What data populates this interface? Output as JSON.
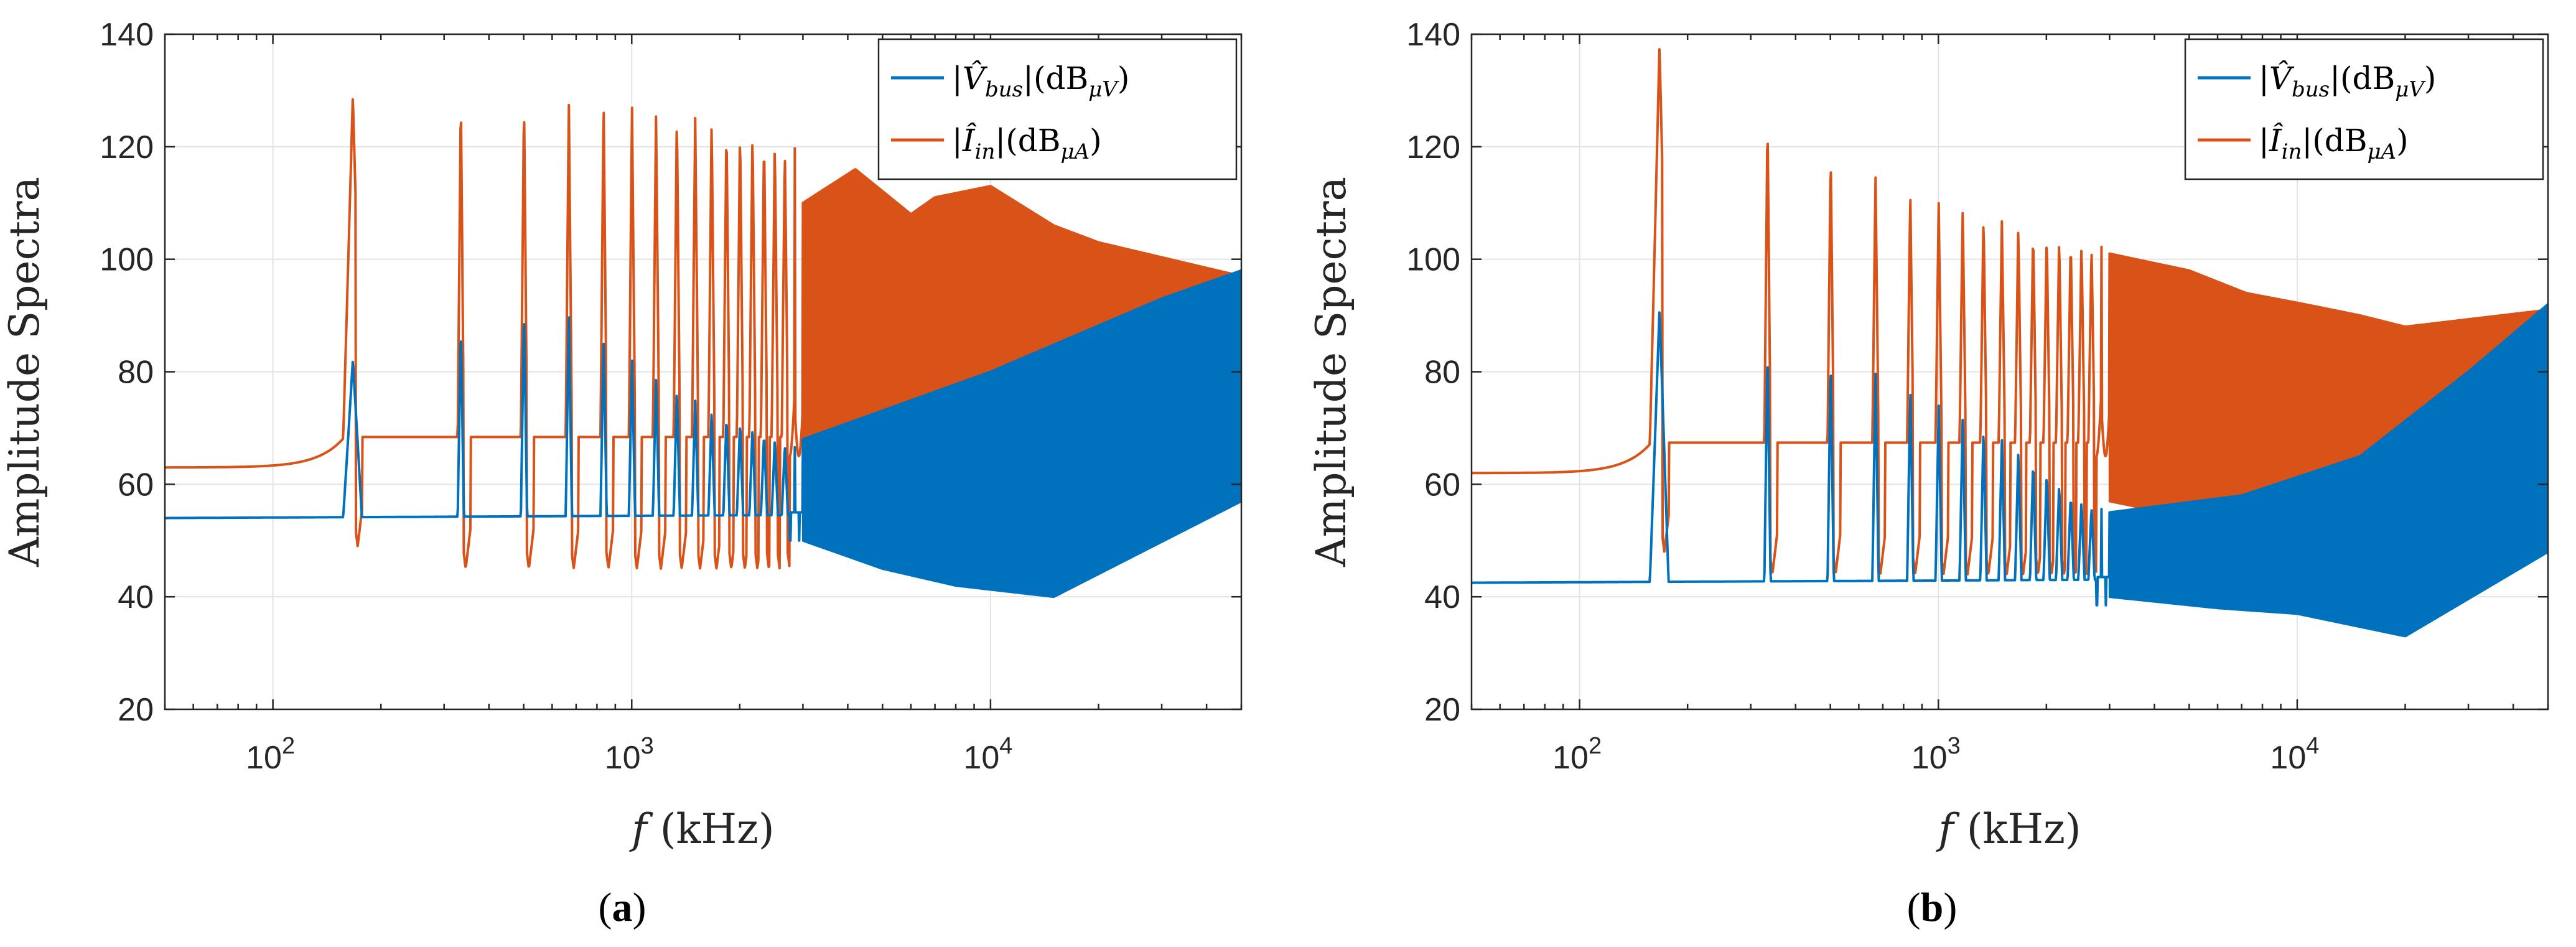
{
  "colors": {
    "vbus": "#0072BD",
    "iin": "#D95319",
    "grid": "#e3e3e3",
    "axis": "#262626"
  },
  "chart_data": [
    {
      "type": "line",
      "panel_label": "(a)",
      "xlabel": "f (kHz)",
      "xlabel_var": "f",
      "xlabel_unit": "(kHz)",
      "ylabel": "Amplitude Spectra",
      "xscale": "log",
      "xlim": [
        50,
        50000
      ],
      "ylim": [
        20,
        140
      ],
      "yticks": [
        20,
        40,
        60,
        80,
        100,
        120,
        140
      ],
      "xticks": [
        100,
        1000,
        10000
      ],
      "xtick_labels": [
        [
          "10",
          "2"
        ],
        [
          "10",
          "3"
        ],
        [
          "10",
          "4"
        ]
      ],
      "grid": true,
      "legend_position": "top-right",
      "series": [
        {
          "name": "|V̂bus|(dBμV)",
          "legend": {
            "pre": "|",
            "var": "V̂",
            "sub": "bus",
            "mid": "|(dB",
            "unitsub": "μV",
            "post": ")"
          },
          "color_key": "vbus"
        },
        {
          "name": "|Îin|(dBμA)",
          "legend": {
            "pre": "|",
            "var": "Î",
            "sub": "in",
            "mid": "|(dB",
            "unitsub": "μA",
            "post": ")"
          },
          "color_key": "iin"
        }
      ],
      "fundamental_khz": 167,
      "harmonic_peaks": {
        "vbus": [
          82,
          88,
          91,
          90,
          86,
          82,
          79,
          77,
          75,
          73,
          72,
          71,
          70,
          69,
          68,
          67
        ],
        "iin": [
          129,
          129,
          128.5,
          128,
          128,
          127,
          126.5,
          126,
          125.5,
          125,
          124,
          123.5,
          123,
          122,
          121,
          120
        ]
      },
      "vbus_baseline": 54,
      "iin_baseline_start": 63,
      "iin_envelope_hf": [
        [
          3000,
          110
        ],
        [
          4200,
          116
        ],
        [
          6000,
          108
        ],
        [
          7000,
          111
        ],
        [
          10000,
          113
        ],
        [
          15000,
          106
        ],
        [
          20000,
          103
        ],
        [
          50000,
          97
        ]
      ],
      "iin_trough_hf": [
        [
          3000,
          62
        ],
        [
          5000,
          55
        ],
        [
          10000,
          52
        ],
        [
          20000,
          48
        ],
        [
          50000,
          58
        ]
      ],
      "vbus_envelope_hf": [
        [
          3000,
          68
        ],
        [
          10000,
          80
        ],
        [
          30000,
          93
        ],
        [
          50000,
          98
        ]
      ],
      "vbus_trough_hf": [
        [
          3000,
          50
        ],
        [
          5000,
          45
        ],
        [
          8000,
          42
        ],
        [
          15000,
          40
        ],
        [
          50000,
          57
        ]
      ]
    },
    {
      "type": "line",
      "panel_label": "(b)",
      "xlabel": "f (kHz)",
      "xlabel_var": "f",
      "xlabel_unit": "(kHz)",
      "ylabel": "Amplitude Spectra",
      "xscale": "log",
      "xlim": [
        50,
        50000
      ],
      "ylim": [
        20,
        140
      ],
      "yticks": [
        20,
        40,
        60,
        80,
        100,
        120,
        140
      ],
      "xticks": [
        100,
        1000,
        10000
      ],
      "xtick_labels": [
        [
          "10",
          "2"
        ],
        [
          "10",
          "3"
        ],
        [
          "10",
          "4"
        ]
      ],
      "grid": true,
      "legend_position": "top-right",
      "series": [
        {
          "name": "|V̂bus|(dBμV)",
          "legend": {
            "pre": "|",
            "var": "V̂",
            "sub": "bus",
            "mid": "|(dB",
            "unitsub": "μV",
            "post": ")"
          },
          "color_key": "vbus"
        },
        {
          "name": "|Îin|(dBμA)",
          "legend": {
            "pre": "|",
            "var": "Î",
            "sub": "in",
            "mid": "|(dB",
            "unitsub": "μA",
            "post": ")"
          },
          "color_key": "iin"
        }
      ],
      "fundamental_khz": 167,
      "harmonic_peaks": {
        "vbus": [
          91,
          84,
          82,
          80,
          77,
          74,
          72,
          70,
          68,
          66,
          64,
          62,
          60,
          58,
          57,
          56
        ],
        "iin": [
          138,
          125,
          119,
          115,
          112,
          110,
          109,
          108,
          107,
          106,
          105,
          104.5,
          104,
          103.5,
          103,
          102.5
        ]
      },
      "vbus_baseline": 42.5,
      "iin_baseline_start": 62,
      "iin_envelope_hf": [
        [
          3000,
          101
        ],
        [
          5000,
          98
        ],
        [
          7200,
          94
        ],
        [
          10500,
          92
        ],
        [
          15000,
          90
        ],
        [
          20000,
          88
        ],
        [
          50000,
          91
        ]
      ],
      "iin_trough_hf": [
        [
          3000,
          57
        ],
        [
          6000,
          53
        ],
        [
          10000,
          48
        ],
        [
          15000,
          35
        ],
        [
          20000,
          50
        ],
        [
          50000,
          60
        ]
      ],
      "vbus_envelope_hf": [
        [
          3000,
          55
        ],
        [
          7000,
          58
        ],
        [
          15000,
          65
        ],
        [
          30000,
          80
        ],
        [
          50000,
          92
        ]
      ],
      "vbus_trough_hf": [
        [
          3000,
          40
        ],
        [
          6000,
          38
        ],
        [
          10000,
          37
        ],
        [
          20000,
          33
        ],
        [
          50000,
          48
        ]
      ]
    }
  ]
}
